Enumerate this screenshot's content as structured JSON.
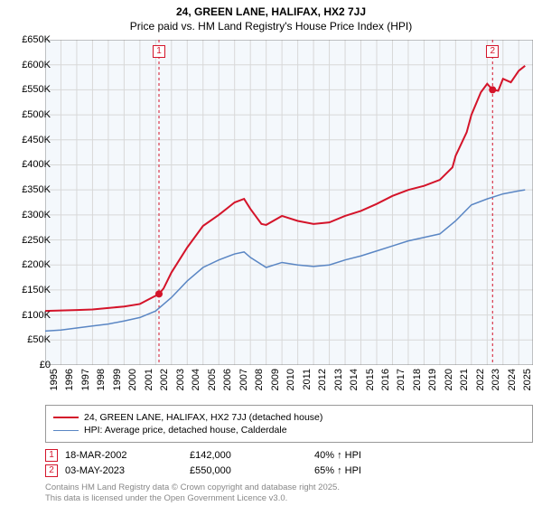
{
  "title": "24, GREEN LANE, HALIFAX, HX2 7JJ",
  "subtitle": "Price paid vs. HM Land Registry's House Price Index (HPI)",
  "chart": {
    "type": "line",
    "background_color": "#ffffff",
    "plot_background_color": "#f4f8fc",
    "grid_color": "#d8d8d8",
    "axis_color": "#888888",
    "label_fontsize": 11,
    "title_fontsize": 12,
    "x": {
      "min": 1995,
      "max": 2025.9,
      "ticks": [
        1995,
        1996,
        1997,
        1998,
        1999,
        2000,
        2001,
        2002,
        2003,
        2004,
        2005,
        2006,
        2007,
        2008,
        2009,
        2010,
        2011,
        2012,
        2013,
        2014,
        2015,
        2016,
        2017,
        2018,
        2019,
        2020,
        2021,
        2022,
        2023,
        2024,
        2025
      ]
    },
    "y": {
      "min": 0,
      "max": 650000,
      "tick_step": 50000,
      "tick_labels": [
        "£0",
        "£50K",
        "£100K",
        "£150K",
        "£200K",
        "£250K",
        "£300K",
        "£350K",
        "£400K",
        "£450K",
        "£500K",
        "£550K",
        "£600K",
        "£650K"
      ]
    },
    "series": [
      {
        "name": "price_paid",
        "label": "24, GREEN LANE, HALIFAX, HX2 7JJ (detached house)",
        "color": "#d4142a",
        "line_width": 2,
        "data": [
          [
            1995,
            108000
          ],
          [
            1996,
            109000
          ],
          [
            1997,
            110000
          ],
          [
            1998,
            111000
          ],
          [
            1999,
            114000
          ],
          [
            2000,
            117000
          ],
          [
            2001,
            122000
          ],
          [
            2002.21,
            142000
          ],
          [
            2002.5,
            153000
          ],
          [
            2003,
            185000
          ],
          [
            2004,
            235000
          ],
          [
            2005,
            278000
          ],
          [
            2006,
            300000
          ],
          [
            2007,
            325000
          ],
          [
            2007.6,
            332000
          ],
          [
            2008,
            312000
          ],
          [
            2008.7,
            282000
          ],
          [
            2009,
            280000
          ],
          [
            2010,
            298000
          ],
          [
            2011,
            288000
          ],
          [
            2012,
            282000
          ],
          [
            2013,
            285000
          ],
          [
            2014,
            298000
          ],
          [
            2015,
            308000
          ],
          [
            2016,
            322000
          ],
          [
            2017,
            338000
          ],
          [
            2018,
            350000
          ],
          [
            2019,
            358000
          ],
          [
            2020,
            370000
          ],
          [
            2020.8,
            395000
          ],
          [
            2021,
            418000
          ],
          [
            2021.7,
            465000
          ],
          [
            2022,
            500000
          ],
          [
            2022.6,
            545000
          ],
          [
            2023,
            562000
          ],
          [
            2023.34,
            550000
          ],
          [
            2023.7,
            548000
          ],
          [
            2024,
            572000
          ],
          [
            2024.5,
            565000
          ],
          [
            2025,
            588000
          ],
          [
            2025.4,
            598000
          ]
        ]
      },
      {
        "name": "hpi",
        "label": "HPI: Average price, detached house, Calderdale",
        "color": "#5a86c4",
        "line_width": 1.5,
        "data": [
          [
            1995,
            68000
          ],
          [
            1996,
            70000
          ],
          [
            1997,
            74000
          ],
          [
            1998,
            78000
          ],
          [
            1999,
            82000
          ],
          [
            2000,
            88000
          ],
          [
            2001,
            95000
          ],
          [
            2002,
            108000
          ],
          [
            2003,
            135000
          ],
          [
            2004,
            168000
          ],
          [
            2005,
            195000
          ],
          [
            2006,
            210000
          ],
          [
            2007,
            222000
          ],
          [
            2007.6,
            226000
          ],
          [
            2008,
            215000
          ],
          [
            2009,
            195000
          ],
          [
            2010,
            205000
          ],
          [
            2011,
            200000
          ],
          [
            2012,
            197000
          ],
          [
            2013,
            200000
          ],
          [
            2014,
            210000
          ],
          [
            2015,
            218000
          ],
          [
            2016,
            228000
          ],
          [
            2017,
            238000
          ],
          [
            2018,
            248000
          ],
          [
            2019,
            255000
          ],
          [
            2020,
            262000
          ],
          [
            2021,
            288000
          ],
          [
            2022,
            320000
          ],
          [
            2023,
            332000
          ],
          [
            2024,
            342000
          ],
          [
            2025,
            348000
          ],
          [
            2025.4,
            350000
          ]
        ]
      }
    ],
    "sale_markers": [
      {
        "n": "1",
        "x": 2002.21,
        "y": 142000,
        "color": "#d4142a"
      },
      {
        "n": "2",
        "x": 2023.34,
        "y": 550000,
        "color": "#d4142a"
      }
    ],
    "marker_dash_color": "#d4142a"
  },
  "legend": {
    "border_color": "#999999"
  },
  "sales": [
    {
      "n": "1",
      "date": "18-MAR-2002",
      "price": "£142,000",
      "diff": "40% ↑ HPI",
      "color": "#d4142a"
    },
    {
      "n": "2",
      "date": "03-MAY-2023",
      "price": "£550,000",
      "diff": "65% ↑ HPI",
      "color": "#d4142a"
    }
  ],
  "attribution": {
    "line1": "Contains HM Land Registry data © Crown copyright and database right 2025.",
    "line2": "This data is licensed under the Open Government Licence v3.0."
  }
}
